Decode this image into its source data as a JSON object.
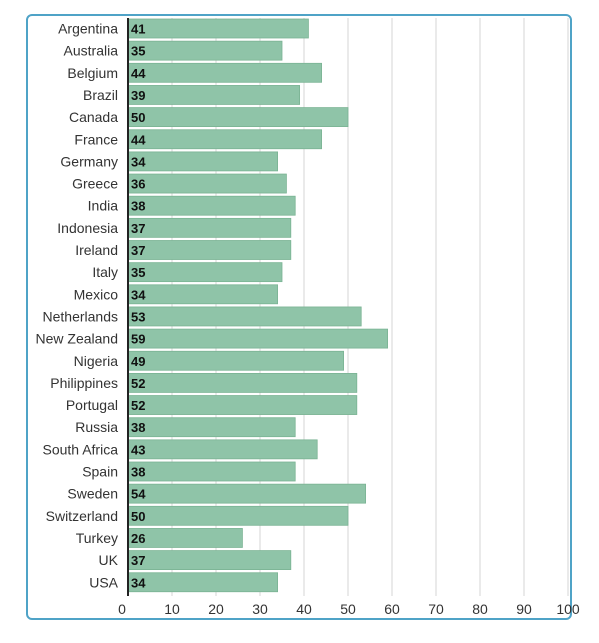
{
  "chart_data": {
    "type": "bar",
    "orientation": "horizontal",
    "title": "",
    "xlabel": "",
    "ylabel": "",
    "categories": [
      "Argentina",
      "Australia",
      "Belgium",
      "Brazil",
      "Canada",
      "France",
      "Germany",
      "Greece",
      "India",
      "Indonesia",
      "Ireland",
      "Italy",
      "Mexico",
      "Netherlands",
      "New Zealand",
      "Nigeria",
      "Philippines",
      "Portugal",
      "Russia",
      "South Africa",
      "Spain",
      "Sweden",
      "Switzerland",
      "Turkey",
      "UK",
      "USA"
    ],
    "values": [
      41,
      35,
      44,
      39,
      50,
      44,
      34,
      36,
      38,
      37,
      37,
      35,
      34,
      53,
      59,
      49,
      52,
      52,
      38,
      43,
      38,
      54,
      50,
      26,
      37,
      34
    ],
    "xlim": [
      0,
      100
    ],
    "xticks": [
      0,
      10,
      20,
      30,
      40,
      50,
      60,
      70,
      80,
      90,
      100
    ],
    "grid": "vertical",
    "legend": "none",
    "bar_color": "#8fc4a8",
    "bar_border_color": "#7ab393",
    "border_color": "#4fa3c7"
  }
}
